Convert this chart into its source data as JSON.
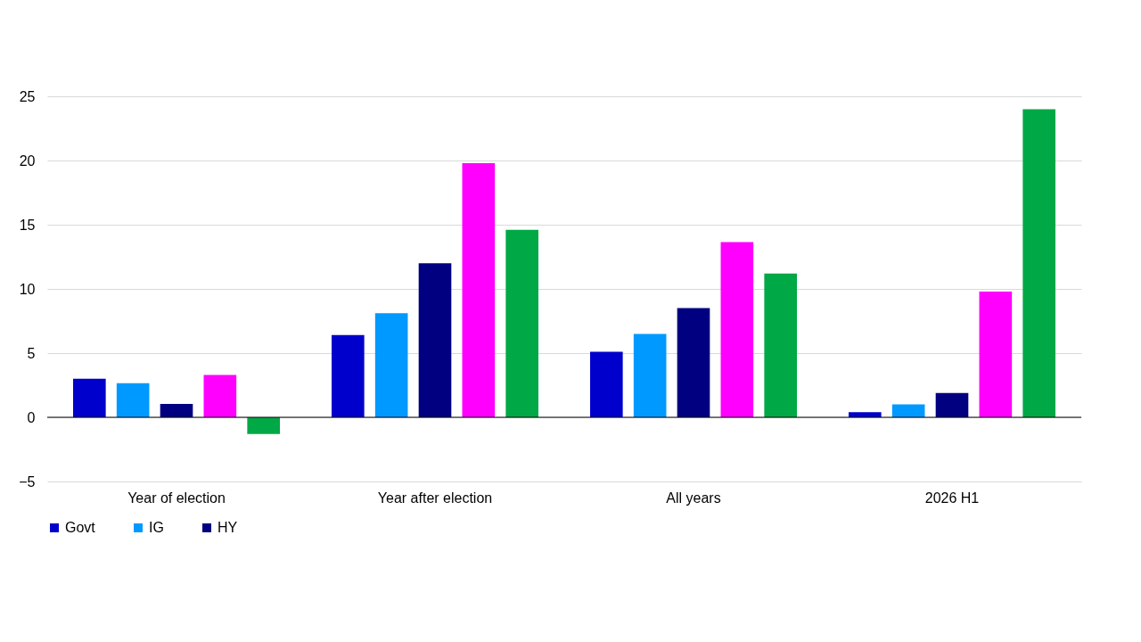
{
  "chart_data": {
    "type": "bar",
    "categories": [
      "Year of election",
      "Year after election",
      "All years",
      "2026 H1"
    ],
    "series": [
      {
        "name": "Govt",
        "color": "#0000cc",
        "values": [
          3.0,
          6.4,
          5.1,
          0.4
        ]
      },
      {
        "name": "IG",
        "color": "#0099ff",
        "values": [
          2.65,
          8.1,
          6.5,
          1.0
        ]
      },
      {
        "name": "HY",
        "color": "#000080",
        "values": [
          1.05,
          12.0,
          8.5,
          1.9
        ]
      },
      {
        "color": "#ff00ff",
        "values": [
          3.3,
          19.8,
          13.65,
          9.8
        ]
      },
      {
        "color": "#00a846",
        "values": [
          -1.3,
          14.6,
          11.2,
          24.0
        ]
      }
    ],
    "ylim": [
      -5,
      25
    ],
    "yticks": [
      -5,
      0,
      5,
      10,
      15,
      20,
      25
    ],
    "grid": "y",
    "legend": "bottom"
  }
}
